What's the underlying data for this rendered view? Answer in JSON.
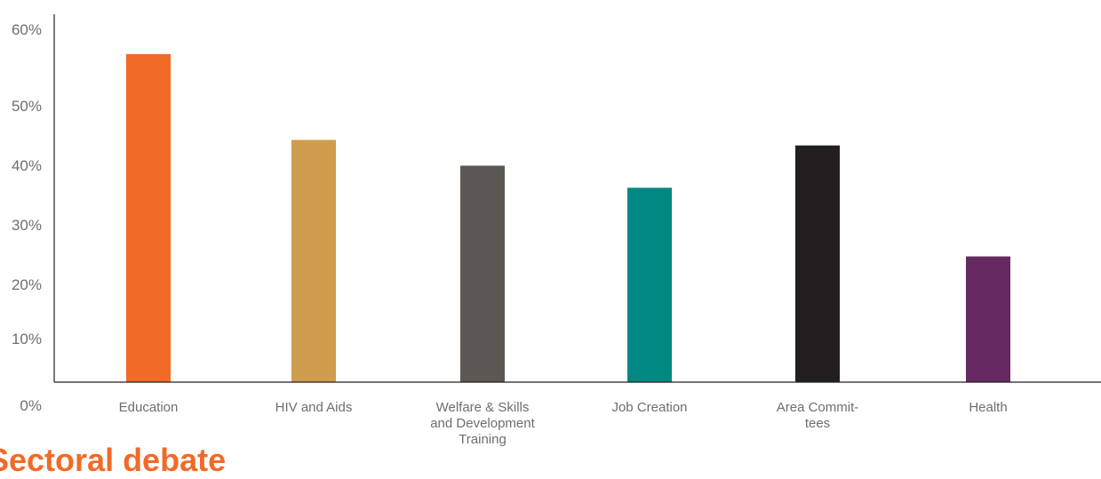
{
  "chart_data": {
    "type": "bar",
    "categories": [
      [
        "Education"
      ],
      [
        "HIV and Aids"
      ],
      [
        "Welfare & Skills",
        "and Development",
        "Training"
      ],
      [
        "Job Creation"
      ],
      [
        "Area Commit-",
        "tees"
      ],
      [
        "Health"
      ]
    ],
    "values": [
      53.5,
      39.5,
      35.3,
      31.7,
      38.6,
      20.5
    ],
    "colors": [
      "#f26a28",
      "#d09c4d",
      "#5c5752",
      "#018882",
      "#231f20",
      "#65295f"
    ],
    "yticks": [
      "0%",
      "10%",
      "20%",
      "30%",
      "40%",
      "50%",
      "60%"
    ],
    "ylim": [
      0,
      60
    ],
    "grid": false,
    "title": "",
    "xlabel": "",
    "ylabel": ""
  },
  "footer": {
    "partial_heading": "Sectoral debate"
  }
}
